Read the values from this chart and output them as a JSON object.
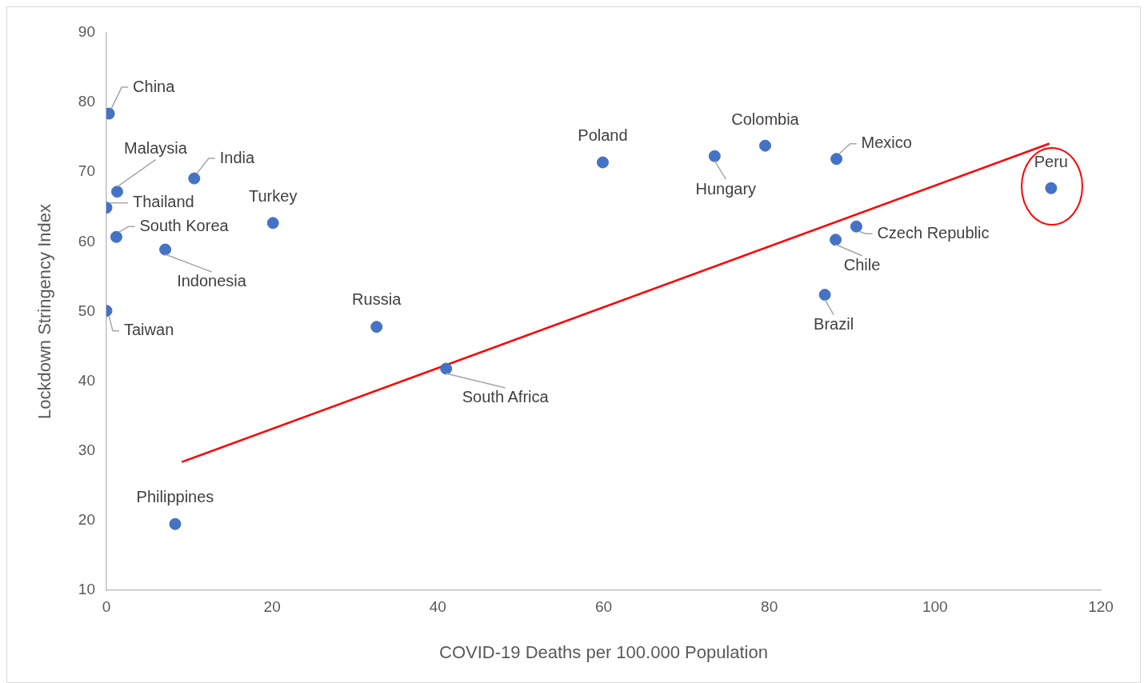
{
  "chart_data": {
    "type": "scatter",
    "xlabel": "COVID-19 Deaths per 100.000 Population",
    "ylabel": "Lockdown Stringency Index",
    "xlim": [
      0,
      120
    ],
    "xticks": [
      0,
      20,
      40,
      60,
      80,
      100,
      120
    ],
    "ylim": [
      10,
      90
    ],
    "yticks": [
      10,
      20,
      30,
      40,
      50,
      60,
      70,
      80,
      90
    ],
    "grid": false,
    "marker": "circle",
    "series": [
      {
        "type": "scatter",
        "color": "#4472c4",
        "x": [
          0.3,
          1.3,
          10.6,
          0,
          1.2,
          20.1,
          7.1,
          0,
          32.6,
          41.0,
          8.3,
          59.9,
          73.4,
          79.5,
          88.1,
          114.0,
          90.5,
          88.0,
          86.7
        ],
        "values": [
          78.4,
          67.2,
          69.1,
          64.9,
          60.7,
          62.7,
          58.9,
          50.1,
          47.8,
          41.8,
          19.5,
          71.4,
          72.3,
          73.8,
          71.9,
          67.7,
          62.2,
          60.3,
          52.4
        ]
      },
      {
        "type": "line",
        "color": "#ff0000",
        "x": [
          9.1,
          113.8
        ],
        "values": [
          28.4,
          74.1
        ],
        "marker": "none"
      }
    ],
    "annotations": [
      {
        "text": "China",
        "x": 0.3,
        "y": 78.4
      },
      {
        "text": "Malaysia",
        "x": 1.3,
        "y": 67.2
      },
      {
        "text": "India",
        "x": 10.6,
        "y": 69.1
      },
      {
        "text": "Thailand",
        "x": 0,
        "y": 64.9
      },
      {
        "text": "South Korea",
        "x": 1.2,
        "y": 60.7
      },
      {
        "text": "Turkey",
        "x": 20.1,
        "y": 62.7
      },
      {
        "text": "Indonesia",
        "x": 7.1,
        "y": 58.9
      },
      {
        "text": "Taiwan",
        "x": 0,
        "y": 50.1
      },
      {
        "text": "Russia",
        "x": 32.6,
        "y": 47.8
      },
      {
        "text": "South Africa",
        "x": 41.0,
        "y": 41.8
      },
      {
        "text": "Philippines",
        "x": 8.3,
        "y": 19.5
      },
      {
        "text": "Poland",
        "x": 59.9,
        "y": 71.4
      },
      {
        "text": "Hungary",
        "x": 73.4,
        "y": 72.3
      },
      {
        "text": "Colombia",
        "x": 79.5,
        "y": 73.8
      },
      {
        "text": "Mexico",
        "x": 88.1,
        "y": 71.9
      },
      {
        "text": "Peru",
        "x": 114.0,
        "y": 67.7
      },
      {
        "text": "Czech Republic",
        "x": 90.5,
        "y": 62.2
      },
      {
        "text": "Chile",
        "x": 88.0,
        "y": 60.3
      },
      {
        "text": "Brazil",
        "x": 86.7,
        "y": 52.4
      }
    ]
  }
}
